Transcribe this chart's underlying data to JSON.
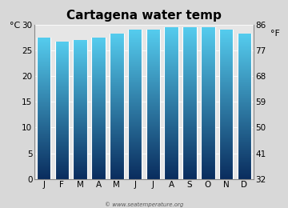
{
  "title": "Cartagena water temp",
  "months": [
    "J",
    "F",
    "M",
    "A",
    "M",
    "J",
    "J",
    "A",
    "S",
    "O",
    "N",
    "D"
  ],
  "values_c": [
    27.5,
    26.7,
    27.0,
    27.5,
    28.3,
    29.1,
    29.1,
    29.5,
    29.5,
    29.5,
    29.1,
    28.3
  ],
  "ylim_c": [
    0,
    30
  ],
  "yticks_c": [
    0,
    5,
    10,
    15,
    20,
    25,
    30
  ],
  "yticks_f": [
    32,
    41,
    50,
    59,
    68,
    77,
    86
  ],
  "ylabel_left": "°C",
  "ylabel_right": "°F",
  "bar_color_top": "#55ccee",
  "bar_color_bottom": "#0a2d5e",
  "background_color": "#d8d8d8",
  "plot_bg_color": "#e6e6e6",
  "watermark": "© www.seatemperature.org",
  "title_fontsize": 11,
  "tick_fontsize": 7.5,
  "label_fontsize": 8,
  "bar_width": 0.78,
  "gradient_steps": 200
}
